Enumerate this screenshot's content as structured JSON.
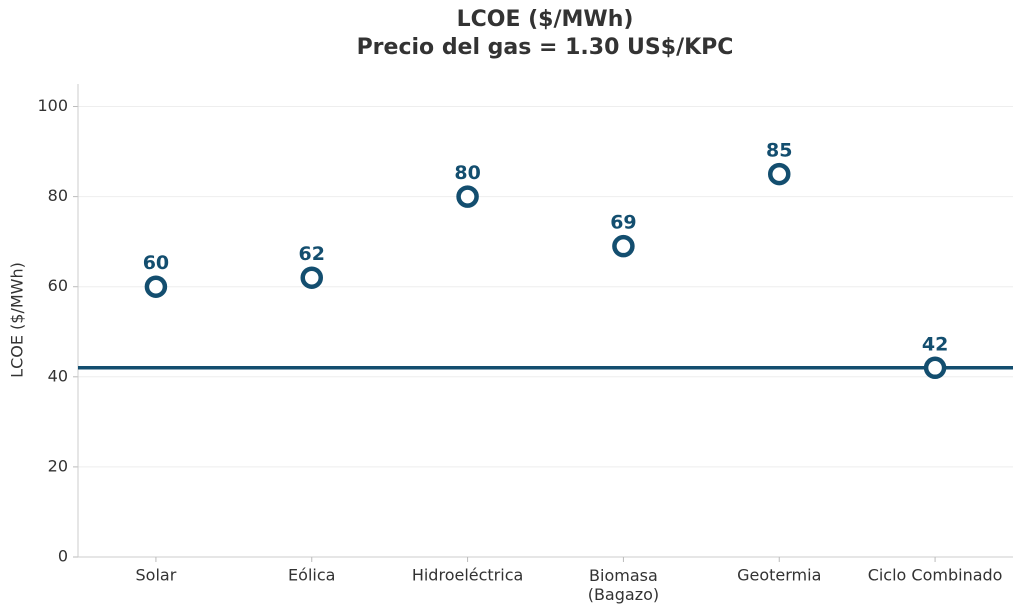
{
  "chart_data": {
    "type": "dot",
    "title": "LCOE ($/MWh)",
    "subtitle": "Precio del gas = 1.30 US$/KPC",
    "y_label": "LCOE ($/MWh)",
    "categories": [
      "Solar",
      "Eólica",
      "Hidroeléctrica",
      "Biomasa\n(Bagazo)",
      "Geotermia",
      "Ciclo Combinado"
    ],
    "values": [
      60,
      62,
      80,
      69,
      85,
      42
    ],
    "color": "#134e6f",
    "reference_line": 42,
    "ylim": [
      0,
      105
    ],
    "yticks": [
      0,
      20,
      40,
      60,
      80,
      100
    ],
    "grid": true
  }
}
